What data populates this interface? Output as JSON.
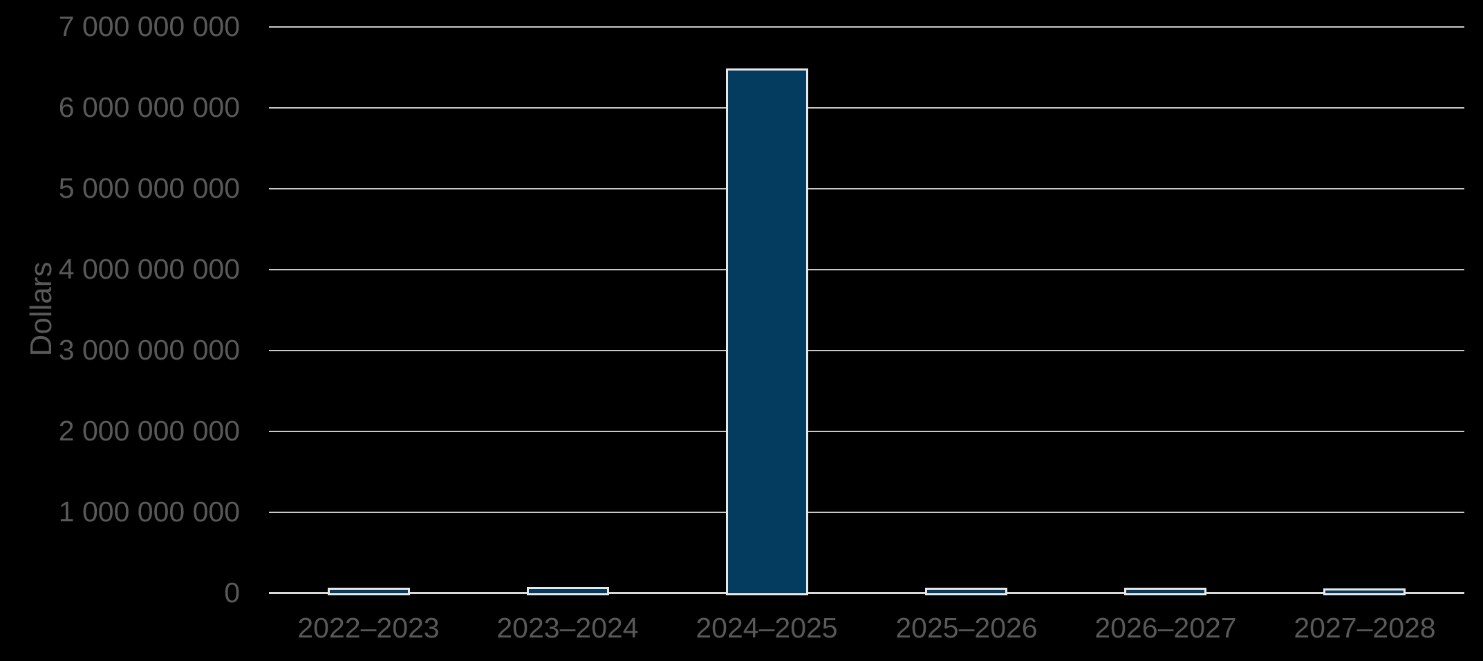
{
  "chart_data": {
    "type": "bar",
    "title": "",
    "xlabel": "",
    "ylabel": "Dollars",
    "categories": [
      "2022–2023",
      "2023–2024",
      "2024–2025",
      "2025–2026",
      "2026–2027",
      "2027–2028"
    ],
    "values": [
      45000000,
      50000000,
      6460000000,
      45000000,
      45000000,
      30000000
    ],
    "ylim": [
      0,
      7000000000
    ],
    "ytick_step": 1000000000,
    "ytick_labels": [
      "0",
      "1 000 000 000",
      "2 000 000 000",
      "3 000 000 000",
      "4 000 000 000",
      "5 000 000 000",
      "6 000 000 000",
      "7 000 000 000"
    ],
    "grid": true,
    "legend": false
  },
  "theme": {
    "background_color": "#000000",
    "text_color": "#595959",
    "gridline_color": "#c9c9c9",
    "axis_line_color": "#d9d9d9",
    "bar_fill_color": "#043c5f",
    "bar_border_color": "#e8e8e8"
  }
}
